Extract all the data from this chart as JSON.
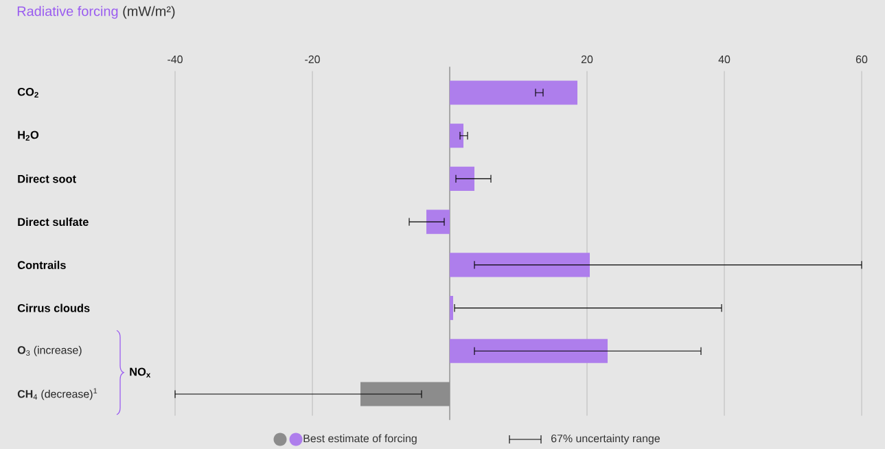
{
  "chart_data": {
    "type": "bar",
    "orientation": "horizontal",
    "title": "Radiative forcing",
    "xlabel": "(mW/m²)",
    "categories": [
      "CO$_{2}$",
      "H$_{2}$O",
      "Direct soot",
      "Direct sulfate",
      "Contrails",
      "Cirrus clouds",
      "**O**$_{3}$ (increase)",
      "**CH**$_{4}$ (decrease)$^{1}$"
    ],
    "series": [
      {
        "name": "Best estimate of forcing",
        "colors": [
          "#ae7eec",
          "#ae7eec",
          "#ae7eec",
          "#ae7eec",
          "#ae7eec",
          "#ae7eec",
          "#ae7eec",
          "#8c8c8c"
        ],
        "values": [
          18.6,
          2.0,
          3.6,
          -3.4,
          20.4,
          0.5,
          23.0,
          -13.0
        ],
        "errors": [
          [
            12.5,
            13.6
          ],
          [
            1.5,
            2.6
          ],
          [
            0.9,
            6.0
          ],
          [
            -5.9,
            -0.8
          ],
          [
            3.6,
            60.0
          ],
          [
            0.7,
            39.6
          ],
          [
            3.6,
            36.6
          ],
          [
            -40.0,
            -4.1
          ]
        ]
      }
    ],
    "xlim": [
      -40,
      60
    ],
    "xticks": [
      -40,
      -20,
      {
        "value": 0,
        "label": null
      },
      20,
      40,
      60
    ],
    "grid": "x",
    "legend": "bottom",
    "ref_lines": [
      {
        "axis": "x",
        "value": 0,
        "color": "#a6a6a6"
      }
    ],
    "annotations": [
      "NO$_{x}$",
      "67% uncertainty range"
    ]
  }
}
